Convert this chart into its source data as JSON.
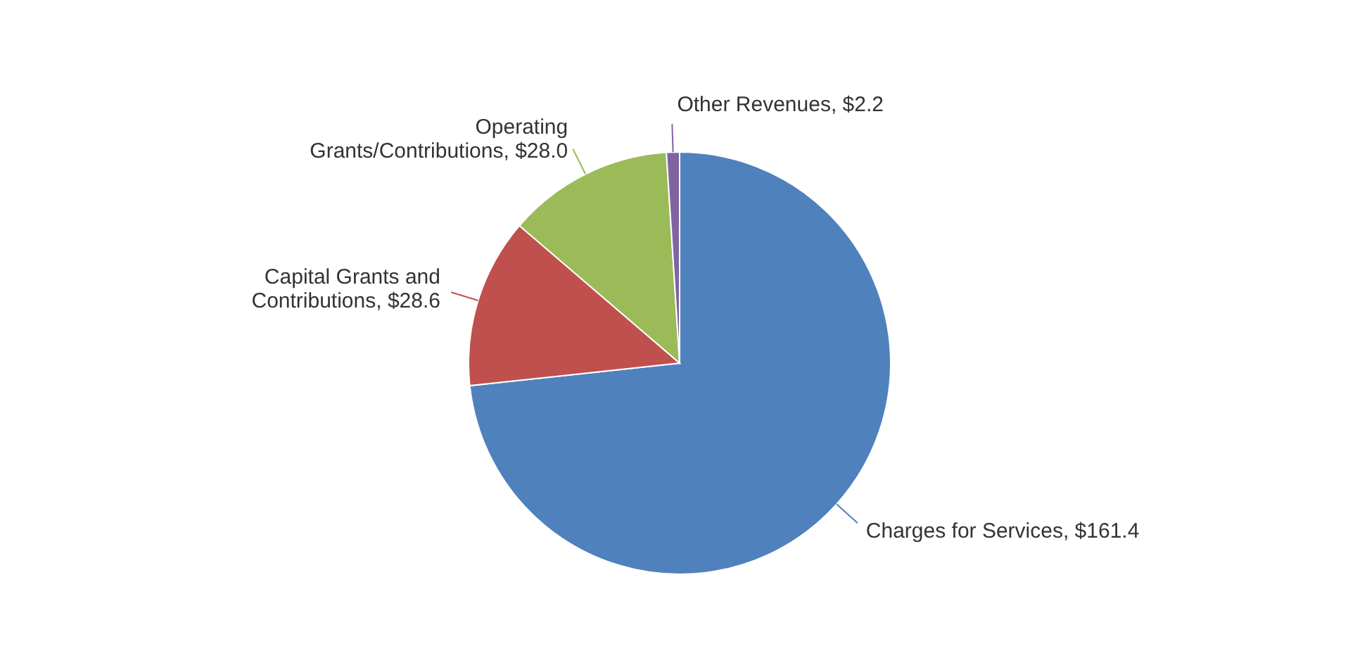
{
  "chart_data": {
    "type": "pie",
    "categories": [
      "Charges for Services",
      "Capital Grants and Contributions",
      "Operating Grants/Contributions",
      "Other Revenues"
    ],
    "values": [
      161.4,
      28.6,
      28.0,
      2.2
    ],
    "value_labels": [
      "$161.4",
      "$28.6",
      "$28.0",
      "$2.2"
    ],
    "colors": [
      "#4f81bd",
      "#c0504d",
      "#9bbb59",
      "#8064a2"
    ],
    "legend": false
  }
}
